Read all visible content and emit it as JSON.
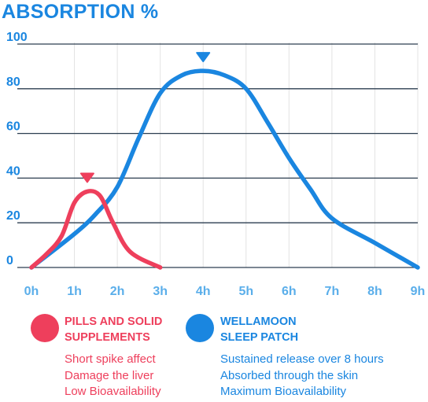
{
  "chart_data": {
    "type": "line",
    "title": "ABSORPTION %",
    "xlabel": "",
    "ylabel": "",
    "x_categories": [
      "0h",
      "1h",
      "2h",
      "3h",
      "4h",
      "5h",
      "6h",
      "7h",
      "8h",
      "9h"
    ],
    "x_range": [
      0,
      9
    ],
    "y_ticks": [
      "0",
      "20",
      "40",
      "60",
      "80",
      "100"
    ],
    "ylim": [
      0,
      100
    ],
    "grid": true,
    "series": [
      {
        "name": "PILLS AND SOLID SUPPLEMENTS",
        "color": "#ee3f5c",
        "x": [
          0,
          0.35,
          0.7,
          1.0,
          1.3,
          1.6,
          1.9,
          2.3,
          3.0
        ],
        "y": [
          0,
          6,
          14,
          29,
          34,
          32,
          20,
          7,
          0
        ],
        "peak": {
          "x": 1.3,
          "y": 34
        }
      },
      {
        "name": "WELLAMOON SLEEP PATCH",
        "color": "#1a86e0",
        "x": [
          0,
          1.0,
          1.5,
          2.0,
          2.5,
          3.0,
          3.5,
          4.0,
          4.5,
          5.0,
          5.5,
          6.0,
          6.5,
          7.0,
          8.0,
          9.0
        ],
        "y": [
          0,
          15,
          24,
          36,
          58,
          78,
          86,
          88,
          86,
          80,
          65,
          49,
          35,
          22,
          11,
          0
        ],
        "peak": {
          "x": 4.0,
          "y": 88
        }
      }
    ]
  },
  "legend": [
    {
      "title_line1": "PILLS AND SOLID",
      "title_line2": "SUPPLEMENTS",
      "color": "#ee3f5c",
      "notes": [
        "Short spike affect",
        "Damage the liver",
        "Low Bioavailability"
      ]
    },
    {
      "title_line1": "WELLAMOON",
      "title_line2": "SLEEP PATCH",
      "color": "#1a86e0",
      "notes": [
        "Sustained release over 8 hours",
        "Absorbed through the skin",
        "Maximum Bioavailability"
      ]
    }
  ]
}
